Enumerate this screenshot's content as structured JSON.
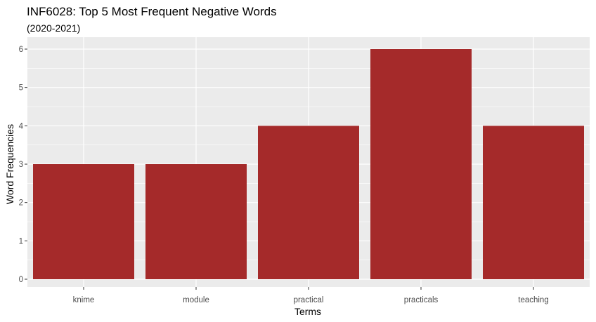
{
  "chart_data": {
    "type": "bar",
    "title": "INF6028: Top 5 Most Frequent Negative Words",
    "subtitle": "(2020-2021)",
    "xlabel": "Terms",
    "ylabel": "Word Frequencies",
    "categories": [
      "knime",
      "module",
      "practical",
      "practicals",
      "teaching"
    ],
    "values": [
      3,
      3,
      4,
      6,
      4
    ],
    "ylim": [
      0,
      6.3
    ],
    "yticks": [
      0,
      1,
      2,
      3,
      4,
      5,
      6
    ],
    "grid": true,
    "legend": "none",
    "bar_color": "#A52A2A",
    "panel_background": "#EBEBEB",
    "grid_color": "#FFFFFF"
  }
}
